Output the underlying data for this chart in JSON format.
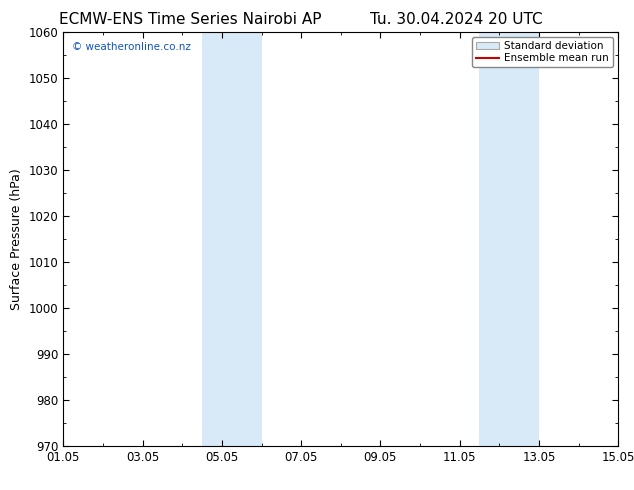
{
  "title_left": "ECMW-ENS Time Series Nairobi AP",
  "title_right": "Tu. 30.04.2024 20 UTC",
  "ylabel": "Surface Pressure (hPa)",
  "ylim": [
    970,
    1060
  ],
  "yticks": [
    970,
    980,
    990,
    1000,
    1010,
    1020,
    1030,
    1040,
    1050,
    1060
  ],
  "xtick_labels": [
    "01.05",
    "03.05",
    "05.05",
    "07.05",
    "09.05",
    "11.05",
    "13.05",
    "15.05"
  ],
  "xtick_positions": [
    0,
    2,
    4,
    6,
    8,
    10,
    12,
    14
  ],
  "xlim": [
    0,
    14
  ],
  "bg_color": "#ffffff",
  "plot_bg_color": "#ffffff",
  "shaded_regions": [
    {
      "x_start": 3.5,
      "x_end": 5.0,
      "color": "#d8eaf8"
    },
    {
      "x_start": 10.5,
      "x_end": 12.0,
      "color": "#d8eaf8"
    }
  ],
  "watermark_text": "© weatheronline.co.nz",
  "watermark_color": "#1155bb",
  "legend_labels": [
    "Standard deviation",
    "Ensemble mean run"
  ],
  "legend_line_color": "#cc0000",
  "legend_patch_facecolor": "#d8eaf8",
  "legend_patch_edgecolor": "#aaaaaa",
  "title_fontsize": 11,
  "axis_label_fontsize": 9,
  "tick_fontsize": 8.5
}
